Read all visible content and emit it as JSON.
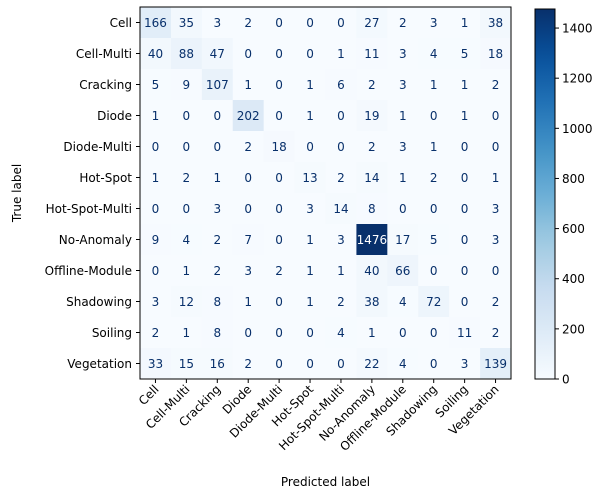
{
  "chart_data": {
    "type": "heatmap",
    "title": "",
    "xlabel": "Predicted label",
    "ylabel": "True label",
    "labels": [
      "Cell",
      "Cell-Multi",
      "Cracking",
      "Diode",
      "Diode-Multi",
      "Hot-Spot",
      "Hot-Spot-Multi",
      "No-Anomaly",
      "Offline-Module",
      "Shadowing",
      "Soiling",
      "Vegetation"
    ],
    "matrix": [
      [
        166,
        35,
        3,
        2,
        0,
        0,
        0,
        27,
        2,
        3,
        1,
        38
      ],
      [
        40,
        88,
        47,
        0,
        0,
        0,
        1,
        11,
        3,
        4,
        5,
        18
      ],
      [
        5,
        9,
        107,
        1,
        0,
        1,
        6,
        2,
        3,
        1,
        1,
        2
      ],
      [
        1,
        0,
        0,
        202,
        0,
        1,
        0,
        19,
        1,
        0,
        1,
        0
      ],
      [
        0,
        0,
        0,
        2,
        18,
        0,
        0,
        2,
        3,
        1,
        0,
        0
      ],
      [
        1,
        2,
        1,
        0,
        0,
        13,
        2,
        14,
        1,
        2,
        0,
        1
      ],
      [
        0,
        0,
        3,
        0,
        0,
        3,
        14,
        8,
        0,
        0,
        0,
        3
      ],
      [
        9,
        4,
        2,
        7,
        0,
        1,
        3,
        1476,
        17,
        5,
        0,
        3
      ],
      [
        0,
        1,
        2,
        3,
        2,
        1,
        1,
        40,
        66,
        0,
        0,
        0
      ],
      [
        3,
        12,
        8,
        1,
        0,
        1,
        2,
        38,
        4,
        72,
        0,
        2
      ],
      [
        2,
        1,
        8,
        0,
        0,
        0,
        4,
        1,
        0,
        0,
        11,
        2
      ],
      [
        33,
        15,
        16,
        2,
        0,
        0,
        0,
        22,
        4,
        0,
        3,
        139
      ]
    ],
    "colormap": "Blues",
    "color_range": [
      0,
      1476
    ],
    "colorbar_ticks": [
      0,
      200,
      400,
      600,
      800,
      1000,
      1200,
      1400
    ],
    "text_colors": {
      "light": "#ffffff",
      "dark": "#08306b"
    }
  }
}
